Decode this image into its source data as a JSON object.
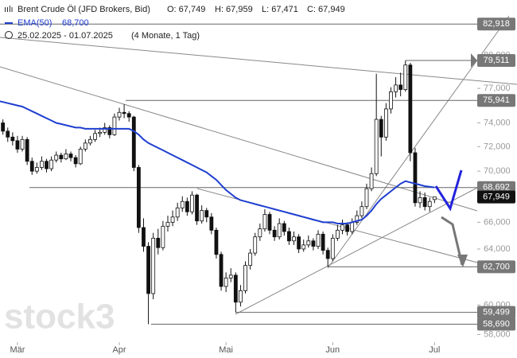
{
  "chart_data": {
    "type": "candlestick",
    "header": {
      "instrument": "Brent Crude Öl (JFD Brokers, Bid)",
      "open": "O: 67,749",
      "high": "H: 67,959",
      "low": "L: 67,471",
      "close": "C: 67,949",
      "ema_name": "EMA(50)",
      "ema_value": "68,700",
      "range": "25.02.2025 - 01.07.2025",
      "span": "(4 Monate, 1 Tag)"
    },
    "watermark": "stock3",
    "up_color": "#ffffff",
    "down_color": "#111111",
    "ema_color": "#1f3fd0",
    "log_scale": true,
    "candles": [
      [
        74.4,
        74.8,
        73.6,
        74.0
      ],
      [
        74.0,
        74.3,
        73.0,
        73.3
      ],
      [
        73.3,
        73.6,
        72.4,
        72.8
      ],
      [
        72.8,
        73.2,
        72.1,
        72.5
      ],
      [
        72.5,
        72.9,
        71.5,
        71.8
      ],
      [
        71.8,
        72.9,
        71.6,
        72.6
      ],
      [
        72.6,
        72.8,
        70.5,
        70.8
      ],
      [
        70.8,
        71.1,
        69.7,
        70.0
      ],
      [
        70.0,
        70.7,
        69.8,
        70.3
      ],
      [
        70.3,
        71.2,
        70.1,
        70.8
      ],
      [
        70.8,
        71.0,
        69.9,
        70.2
      ],
      [
        70.2,
        71.2,
        70.0,
        70.9
      ],
      [
        70.9,
        71.6,
        70.7,
        71.3
      ],
      [
        71.3,
        71.5,
        70.7,
        71.0
      ],
      [
        71.0,
        71.8,
        70.9,
        71.4
      ],
      [
        71.4,
        71.6,
        70.8,
        71.1
      ],
      [
        71.1,
        71.3,
        70.3,
        70.6
      ],
      [
        70.6,
        72.0,
        70.5,
        71.8
      ],
      [
        71.8,
        72.6,
        71.6,
        72.3
      ],
      [
        72.3,
        72.9,
        72.1,
        72.6
      ],
      [
        72.6,
        73.4,
        72.4,
        73.1
      ],
      [
        73.1,
        73.6,
        72.8,
        73.2
      ],
      [
        73.2,
        74.0,
        73.0,
        73.6
      ],
      [
        73.6,
        73.8,
        72.7,
        73.0
      ],
      [
        73.0,
        74.8,
        72.9,
        74.5
      ],
      [
        74.5,
        75.3,
        74.2,
        74.9
      ],
      [
        74.9,
        75.6,
        74.4,
        74.8
      ],
      [
        74.8,
        75.0,
        74.1,
        74.5
      ],
      [
        74.5,
        74.6,
        70.0,
        70.3
      ],
      [
        70.3,
        70.5,
        65.2,
        65.6
      ],
      [
        65.6,
        66.3,
        63.8,
        64.2
      ],
      [
        64.2,
        64.5,
        58.69,
        60.8
      ],
      [
        60.8,
        65.2,
        60.4,
        64.8
      ],
      [
        64.8,
        65.5,
        63.6,
        64.1
      ],
      [
        64.1,
        66.1,
        63.9,
        65.7
      ],
      [
        65.7,
        66.5,
        65.3,
        66.0
      ],
      [
        66.0,
        66.9,
        65.7,
        66.4
      ],
      [
        66.4,
        67.5,
        66.1,
        67.1
      ],
      [
        67.1,
        68.0,
        66.8,
        67.6
      ],
      [
        67.6,
        67.9,
        66.5,
        66.8
      ],
      [
        66.8,
        68.4,
        66.6,
        68.1
      ],
      [
        68.1,
        68.2,
        65.8,
        66.1
      ],
      [
        66.1,
        67.3,
        65.9,
        66.9
      ],
      [
        66.9,
        67.1,
        66.0,
        66.4
      ],
      [
        66.4,
        66.7,
        65.1,
        65.4
      ],
      [
        65.4,
        65.6,
        63.3,
        63.6
      ],
      [
        63.6,
        63.8,
        61.0,
        61.3
      ],
      [
        61.3,
        62.3,
        60.9,
        61.9
      ],
      [
        61.9,
        62.6,
        61.6,
        62.1
      ],
      [
        62.1,
        62.3,
        59.499,
        60.2
      ],
      [
        60.2,
        61.4,
        59.9,
        61.0
      ],
      [
        61.0,
        63.1,
        60.8,
        62.8
      ],
      [
        62.8,
        64.0,
        62.5,
        63.7
      ],
      [
        63.7,
        65.2,
        63.5,
        64.9
      ],
      [
        64.9,
        65.9,
        64.6,
        65.5
      ],
      [
        65.5,
        67.0,
        65.3,
        66.6
      ],
      [
        66.6,
        66.8,
        65.1,
        65.4
      ],
      [
        65.4,
        65.7,
        64.6,
        64.9
      ],
      [
        64.9,
        66.3,
        64.7,
        65.9
      ],
      [
        65.9,
        66.1,
        65.0,
        65.3
      ],
      [
        65.3,
        65.6,
        64.3,
        64.6
      ],
      [
        64.6,
        65.3,
        64.3,
        64.9
      ],
      [
        64.9,
        65.1,
        63.7,
        64.0
      ],
      [
        64.0,
        64.7,
        63.8,
        64.3
      ],
      [
        64.3,
        65.0,
        64.1,
        64.6
      ],
      [
        64.6,
        64.8,
        63.9,
        64.2
      ],
      [
        64.2,
        65.4,
        64.0,
        65.1
      ],
      [
        65.1,
        65.3,
        63.6,
        63.9
      ],
      [
        63.9,
        64.1,
        62.7,
        63.3
      ],
      [
        63.3,
        65.1,
        63.1,
        64.8
      ],
      [
        64.8,
        65.8,
        64.6,
        65.4
      ],
      [
        65.4,
        66.2,
        65.1,
        65.8
      ],
      [
        65.8,
        66.0,
        65.0,
        65.3
      ],
      [
        65.3,
        66.3,
        65.1,
        66.0
      ],
      [
        66.0,
        66.9,
        65.8,
        66.5
      ],
      [
        66.5,
        67.6,
        66.3,
        67.2
      ],
      [
        67.2,
        69.0,
        67.0,
        68.6
      ],
      [
        68.6,
        70.3,
        68.4,
        69.8
      ],
      [
        69.8,
        78.3,
        69.6,
        74.3
      ],
      [
        74.3,
        74.6,
        71.2,
        72.8
      ],
      [
        72.8,
        75.7,
        72.5,
        75.2
      ],
      [
        75.2,
        77.1,
        74.8,
        76.7
      ],
      [
        76.7,
        78.0,
        76.2,
        77.3
      ],
      [
        77.3,
        78.4,
        76.3,
        76.9
      ],
      [
        76.9,
        79.511,
        76.7,
        79.1
      ],
      [
        79.1,
        79.3,
        70.8,
        71.5
      ],
      [
        71.5,
        71.9,
        67.2,
        67.5
      ],
      [
        67.5,
        68.4,
        67.1,
        67.9
      ],
      [
        67.9,
        68.3,
        66.9,
        67.2
      ],
      [
        67.2,
        67.9,
        66.8,
        67.6
      ],
      [
        67.749,
        67.959,
        67.471,
        67.949
      ]
    ],
    "ema": [
      75.9,
      75.8,
      75.7,
      75.6,
      75.5,
      75.4,
      75.2,
      75.0,
      74.8,
      74.6,
      74.4,
      74.2,
      74.0,
      73.9,
      73.8,
      73.7,
      73.6,
      73.6,
      73.5,
      73.5,
      73.5,
      73.5,
      73.5,
      73.5,
      73.5,
      73.5,
      73.5,
      73.5,
      73.3,
      73.0,
      72.6,
      72.3,
      72.1,
      71.9,
      71.7,
      71.5,
      71.3,
      71.1,
      70.9,
      70.7,
      70.5,
      70.3,
      70.1,
      69.9,
      69.6,
      69.3,
      68.9,
      68.5,
      68.2,
      67.9,
      67.7,
      67.6,
      67.5,
      67.4,
      67.3,
      67.2,
      67.1,
      67.0,
      66.9,
      66.8,
      66.7,
      66.6,
      66.5,
      66.4,
      66.3,
      66.2,
      66.1,
      66.0,
      66.0,
      66.0,
      65.9,
      65.9,
      65.9,
      66.0,
      66.1,
      66.2,
      66.5,
      66.9,
      67.4,
      67.8,
      68.1,
      68.4,
      68.7,
      69.0,
      69.2,
      69.1,
      69.0,
      68.9,
      68.8,
      68.75,
      68.7
    ],
    "xlim": [
      0.4,
      98.8
    ],
    "xticks": [
      {
        "value": 4,
        "label": "Mär"
      },
      {
        "value": 25,
        "label": "Apr"
      },
      {
        "value": 47,
        "label": "Mai"
      },
      {
        "value": 69,
        "label": "Jun"
      },
      {
        "value": 90,
        "label": "Jul"
      }
    ],
    "ylim": [
      57.6,
      83.7
    ],
    "yticks": [
      {
        "value": 58,
        "label": "58,000"
      },
      {
        "value": 60,
        "label": "60,000"
      },
      {
        "value": 64,
        "label": "64,000"
      },
      {
        "value": 66,
        "label": "66,000"
      },
      {
        "value": 70,
        "label": "70,000"
      },
      {
        "value": 72,
        "label": "72,000"
      },
      {
        "value": 74,
        "label": "74,000"
      },
      {
        "value": 77,
        "label": "77,000"
      },
      {
        "value": 80,
        "label": "80,000"
      }
    ],
    "levels": [
      {
        "value": 82.918,
        "label": "82,918"
      },
      {
        "value": 79.511,
        "label": "79,511"
      },
      {
        "value": 75.941,
        "label": "75,941"
      },
      {
        "value": 68.692,
        "label": "68,692"
      },
      {
        "value": 62.7,
        "label": "62,700"
      },
      {
        "value": 59.499,
        "label": "59,499"
      },
      {
        "value": 58.69,
        "label": "58,690"
      }
    ],
    "last_price": {
      "value": 67.949,
      "label": "67,949"
    }
  }
}
